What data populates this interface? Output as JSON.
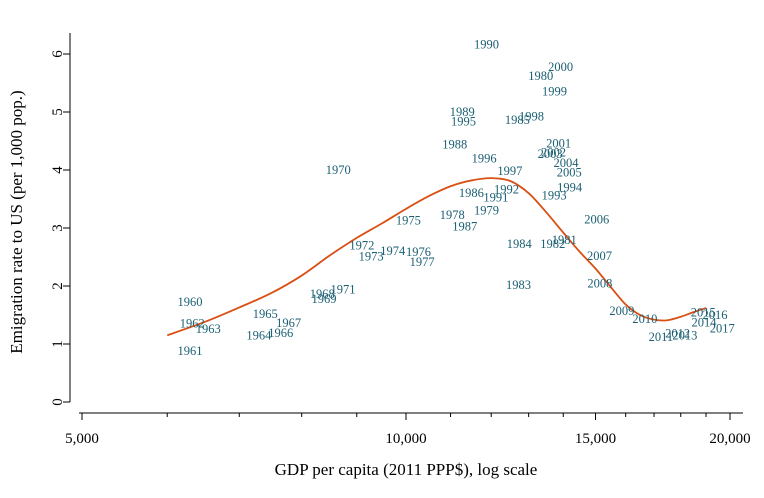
{
  "chart_data": {
    "type": "scatter",
    "xlabel": "GDP per capita (2011 PPP$), log scale",
    "ylabel": "Emigration rate to US (per 1,000 pop.)",
    "x_scale": "log",
    "xlim": [
      5000,
      20500
    ],
    "ylim": [
      -0.2,
      6.4
    ],
    "x_ticks": [
      {
        "value": 5000,
        "label": "5,000"
      },
      {
        "value": 10000,
        "label": "10,000"
      },
      {
        "value": 15000,
        "label": "15,000"
      },
      {
        "value": 20000,
        "label": "20,000"
      }
    ],
    "x_minor_ticks": [
      6000,
      7000,
      8000,
      9000,
      11000,
      12000,
      13000,
      14000,
      16000,
      17000,
      18000,
      19000
    ],
    "y_ticks": [
      {
        "value": 0,
        "label": "0"
      },
      {
        "value": 1,
        "label": "1"
      },
      {
        "value": 2,
        "label": "2"
      },
      {
        "value": 3,
        "label": "3"
      },
      {
        "value": 4,
        "label": "4"
      },
      {
        "value": 5,
        "label": "5"
      },
      {
        "value": 6,
        "label": "6"
      }
    ],
    "grid": false,
    "colors": {
      "labels": "#1b5f73",
      "fit": "#d94f14"
    },
    "points": [
      {
        "label": "1960",
        "x": 6300,
        "y": 1.72
      },
      {
        "label": "1961",
        "x": 6300,
        "y": 0.88
      },
      {
        "label": "1962",
        "x": 6330,
        "y": 1.35
      },
      {
        "label": "1963",
        "x": 6550,
        "y": 1.26
      },
      {
        "label": "1964",
        "x": 7300,
        "y": 1.15
      },
      {
        "label": "1965",
        "x": 7400,
        "y": 1.52
      },
      {
        "label": "1966",
        "x": 7650,
        "y": 1.19
      },
      {
        "label": "1967",
        "x": 7780,
        "y": 1.36
      },
      {
        "label": "1968",
        "x": 8360,
        "y": 1.86
      },
      {
        "label": "1969",
        "x": 8390,
        "y": 1.78
      },
      {
        "label": "1970",
        "x": 8650,
        "y": 4.0
      },
      {
        "label": "1971",
        "x": 8740,
        "y": 1.94
      },
      {
        "label": "1972",
        "x": 9100,
        "y": 2.7
      },
      {
        "label": "1973",
        "x": 9280,
        "y": 2.51
      },
      {
        "label": "1974",
        "x": 9720,
        "y": 2.6
      },
      {
        "label": "1975",
        "x": 10050,
        "y": 3.13
      },
      {
        "label": "1976",
        "x": 10270,
        "y": 2.59
      },
      {
        "label": "1977",
        "x": 10350,
        "y": 2.41
      },
      {
        "label": "1978",
        "x": 11040,
        "y": 3.22
      },
      {
        "label": "1979",
        "x": 11880,
        "y": 3.3
      },
      {
        "label": "1980",
        "x": 13340,
        "y": 5.62
      },
      {
        "label": "1981",
        "x": 14030,
        "y": 2.79
      },
      {
        "label": "1982",
        "x": 13690,
        "y": 2.72
      },
      {
        "label": "1983",
        "x": 12720,
        "y": 2.02
      },
      {
        "label": "1984",
        "x": 12740,
        "y": 2.72
      },
      {
        "label": "1985",
        "x": 12690,
        "y": 4.86
      },
      {
        "label": "1986",
        "x": 11500,
        "y": 3.6
      },
      {
        "label": "1987",
        "x": 11340,
        "y": 3.03
      },
      {
        "label": "1988",
        "x": 11100,
        "y": 4.44
      },
      {
        "label": "1989",
        "x": 11280,
        "y": 5.0
      },
      {
        "label": "1990",
        "x": 11880,
        "y": 6.16
      },
      {
        "label": "1991",
        "x": 12120,
        "y": 3.53
      },
      {
        "label": "1992",
        "x": 12400,
        "y": 3.66
      },
      {
        "label": "1993",
        "x": 13730,
        "y": 3.56
      },
      {
        "label": "1994",
        "x": 14190,
        "y": 3.7
      },
      {
        "label": "1995",
        "x": 11310,
        "y": 4.84
      },
      {
        "label": "1996",
        "x": 11820,
        "y": 4.2
      },
      {
        "label": "1997",
        "x": 12490,
        "y": 3.98
      },
      {
        "label": "1998",
        "x": 13080,
        "y": 4.92
      },
      {
        "label": "1999",
        "x": 13740,
        "y": 5.35
      },
      {
        "label": "2000",
        "x": 13920,
        "y": 5.78
      },
      {
        "label": "2001",
        "x": 13860,
        "y": 4.46
      },
      {
        "label": "2002",
        "x": 13710,
        "y": 4.3
      },
      {
        "label": "2003",
        "x": 13610,
        "y": 4.28
      },
      {
        "label": "2004",
        "x": 14080,
        "y": 4.12
      },
      {
        "label": "2005",
        "x": 14180,
        "y": 3.96
      },
      {
        "label": "2006",
        "x": 15040,
        "y": 3.15
      },
      {
        "label": "2007",
        "x": 15130,
        "y": 2.52
      },
      {
        "label": "2008",
        "x": 15140,
        "y": 2.04
      },
      {
        "label": "2009",
        "x": 15870,
        "y": 1.57
      },
      {
        "label": "2010",
        "x": 16670,
        "y": 1.43
      },
      {
        "label": "2011",
        "x": 17250,
        "y": 1.12
      },
      {
        "label": "2012",
        "x": 17880,
        "y": 1.18
      },
      {
        "label": "2013",
        "x": 18160,
        "y": 1.15
      },
      {
        "label": "2014",
        "x": 18920,
        "y": 1.37
      },
      {
        "label": "2015",
        "x": 18890,
        "y": 1.54
      },
      {
        "label": "2016",
        "x": 19370,
        "y": 1.5
      },
      {
        "label": "2017",
        "x": 19670,
        "y": 1.27
      }
    ],
    "fit_line": {
      "x": [
        6000,
        6500,
        7000,
        7500,
        8000,
        8500,
        9000,
        9500,
        10000,
        10500,
        11000,
        11500,
        12000,
        12500,
        13000,
        13500,
        14000,
        14500,
        15000,
        15500,
        16000,
        16500,
        17000,
        17500,
        18000,
        18500,
        19000
      ],
      "y": [
        1.15,
        1.38,
        1.63,
        1.88,
        2.18,
        2.53,
        2.83,
        3.08,
        3.33,
        3.55,
        3.72,
        3.82,
        3.86,
        3.81,
        3.6,
        3.27,
        2.92,
        2.59,
        2.3,
        1.98,
        1.68,
        1.5,
        1.42,
        1.41,
        1.47,
        1.55,
        1.62
      ]
    }
  }
}
